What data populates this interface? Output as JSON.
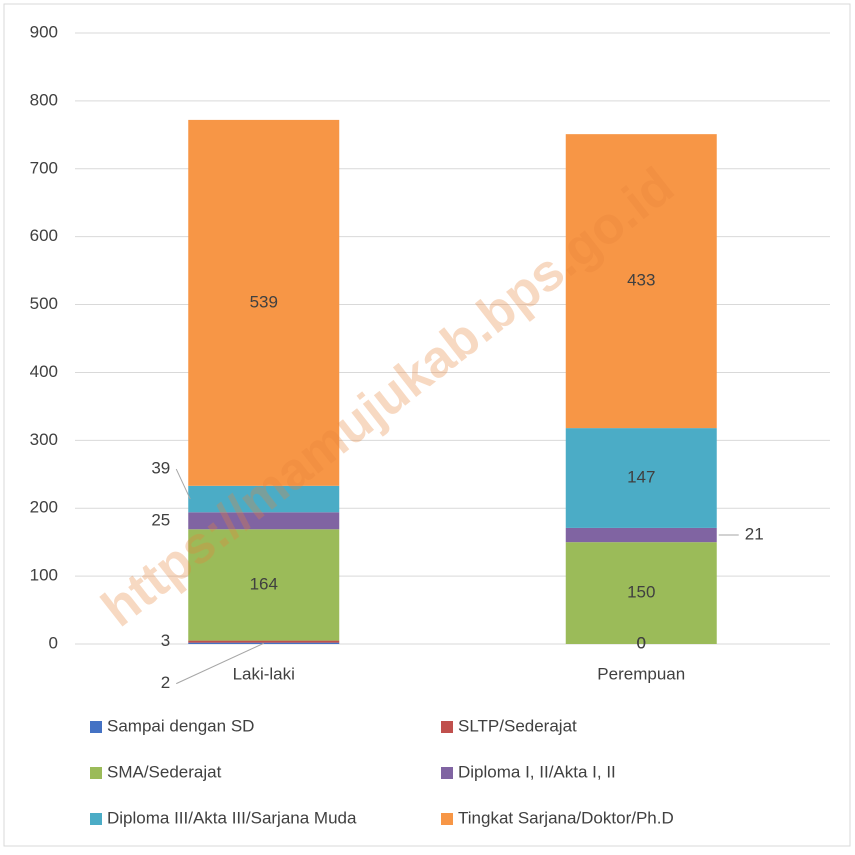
{
  "chart_data": {
    "type": "stacked_bar",
    "categories": [
      "Laki-laki",
      "Perempuan"
    ],
    "series": [
      {
        "name": "Sampai dengan SD",
        "color": "#4472c4",
        "values": [
          2,
          0
        ]
      },
      {
        "name": "SLTP/Sederajat",
        "color": "#c0504d",
        "values": [
          3,
          0
        ]
      },
      {
        "name": "SMA/Sederajat",
        "color": "#9bbb59",
        "values": [
          164,
          150
        ]
      },
      {
        "name": "Diploma I, II/Akta I, II",
        "color": "#8064a2",
        "values": [
          25,
          21
        ]
      },
      {
        "name": "Diploma III/Akta III/Sarjana Muda",
        "color": "#4bacc6",
        "values": [
          39,
          147
        ]
      },
      {
        "name": "Tingkat Sarjana/Doktor/Ph.D",
        "color": "#f79646",
        "values": [
          539,
          433
        ]
      }
    ],
    "ylim": [
      0,
      900
    ],
    "yticks": [
      0,
      100,
      200,
      300,
      400,
      500,
      600,
      700,
      800,
      900
    ],
    "grid": true,
    "legend": "bottom",
    "watermark": "https://mamujukab.bps.go.id"
  }
}
